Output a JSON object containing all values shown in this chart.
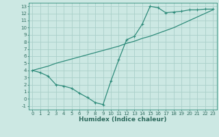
{
  "line1_x": [
    0,
    1,
    2,
    3,
    4,
    5,
    6,
    7,
    8,
    9,
    10,
    11,
    12,
    13,
    14,
    15,
    16,
    17,
    18,
    19,
    20,
    21,
    22,
    23
  ],
  "line1_y": [
    4.0,
    4.3,
    4.6,
    5.0,
    5.3,
    5.6,
    5.9,
    6.2,
    6.5,
    6.8,
    7.1,
    7.4,
    7.8,
    8.1,
    8.5,
    8.8,
    9.2,
    9.6,
    10.0,
    10.5,
    11.0,
    11.5,
    12.0,
    12.5
  ],
  "line2_x": [
    0,
    1,
    2,
    3,
    4,
    5,
    6,
    7,
    8,
    9,
    10,
    11,
    12,
    13,
    14,
    15,
    16,
    17,
    18,
    19,
    20,
    21,
    22,
    23
  ],
  "line2_y": [
    4.0,
    3.7,
    3.2,
    2.0,
    1.8,
    1.5,
    0.8,
    0.2,
    -0.5,
    -0.8,
    2.5,
    5.5,
    8.3,
    8.8,
    10.5,
    13.0,
    12.8,
    12.1,
    12.2,
    12.3,
    12.5,
    12.5,
    12.6,
    12.6
  ],
  "color": "#2e8b7a",
  "bg_color": "#cce8e3",
  "grid_color": "#aacfc9",
  "xlabel": "Humidex (Indice chaleur)",
  "xlim": [
    -0.5,
    23.5
  ],
  "ylim": [
    -1.5,
    13.5
  ],
  "xticks": [
    0,
    1,
    2,
    3,
    4,
    5,
    6,
    7,
    8,
    9,
    10,
    11,
    12,
    13,
    14,
    15,
    16,
    17,
    18,
    19,
    20,
    21,
    22,
    23
  ],
  "yticks": [
    -1,
    0,
    1,
    2,
    3,
    4,
    5,
    6,
    7,
    8,
    9,
    10,
    11,
    12,
    13
  ],
  "tick_color": "#2e6b5e",
  "xlabel_fontsize": 6.5,
  "tick_fontsize": 5.0
}
